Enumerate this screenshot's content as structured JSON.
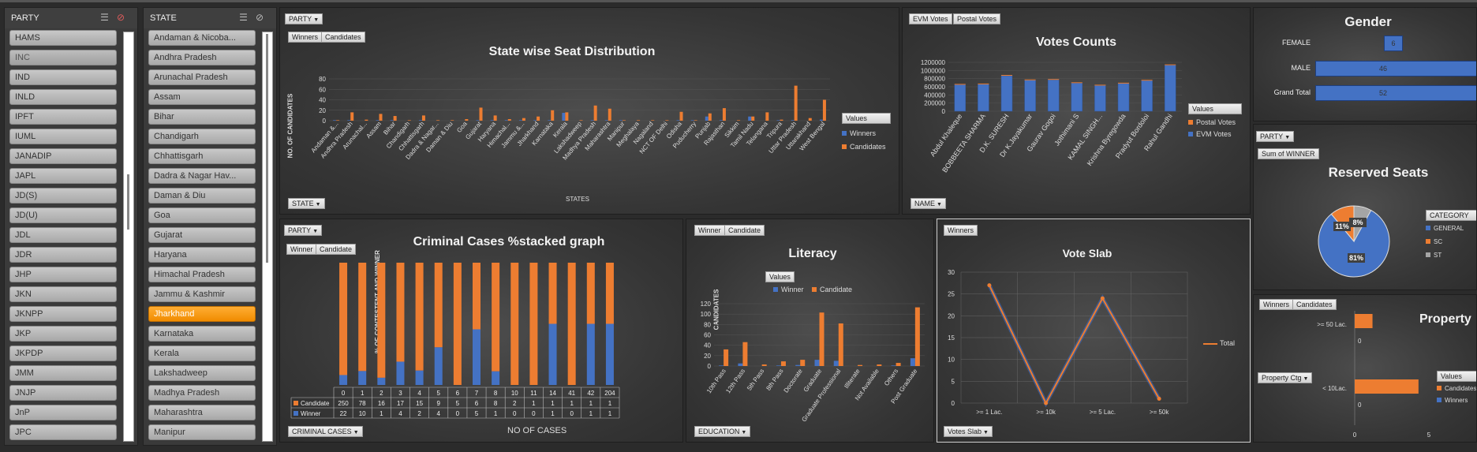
{
  "colors": {
    "orange": "#ed7d31",
    "blue": "#4472c4",
    "gray": "#a5a5a5",
    "selected": "#f59a1b"
  },
  "party_slicer": {
    "header": "PARTY",
    "items": [
      "HAMS",
      "INC",
      "IND",
      "INLD",
      "IPFT",
      "IUML",
      "JANADIP",
      "JAPL",
      "JD(S)",
      "JD(U)",
      "JDL",
      "JDR",
      "JHP",
      "JKN",
      "JKNPP",
      "JKP",
      "JKPDP",
      "JMM",
      "JNJP",
      "JnP",
      "JPC"
    ]
  },
  "state_slicer": {
    "header": "STATE",
    "items": [
      "Andaman & Nicoba...",
      "Andhra Pradesh",
      "Arunachal Pradesh",
      "Assam",
      "Bihar",
      "Chandigarh",
      "Chhattisgarh",
      "Dadra & Nagar Hav...",
      "Daman & Diu",
      "Goa",
      "Gujarat",
      "Haryana",
      "Himachal Pradesh",
      "Jammu & Kashmir",
      "Jharkhand",
      "Karnataka",
      "Kerala",
      "Lakshadweep",
      "Madhya Pradesh",
      "Maharashtra",
      "Manipur"
    ],
    "selected": "Jharkhand"
  },
  "seat_chart": {
    "field_party": "PARTY",
    "legend_buttons": [
      "Winners",
      "Candidates"
    ],
    "field_axis": "STATE",
    "legend_title": "Values"
  },
  "votes_chart": {
    "legend_buttons": [
      "EVM Votes",
      "Postal Votes"
    ],
    "field_axis": "NAME",
    "legend_title": "Values"
  },
  "gender_chart": {
    "title": "Gender",
    "rows": [
      {
        "label": "FEMALE",
        "value": "6"
      },
      {
        "label": "MALE",
        "value": "46"
      },
      {
        "label": "Grand Total",
        "value": "52"
      }
    ]
  },
  "reserved_chart": {
    "field_party": "PARTY",
    "sum_button": "Sum of WINNER",
    "title": "Reserved Seats",
    "legend_title": "CATEGORY"
  },
  "criminal_chart": {
    "field_party": "PARTY",
    "legend_buttons": [
      "Winner",
      "Candidate"
    ],
    "field_axis": "CRIMINAL CASES",
    "table_header": [
      "0",
      "1",
      "2",
      "3",
      "4",
      "5",
      "6",
      "7",
      "8",
      "10",
      "11",
      "14",
      "41",
      "42",
      "204"
    ],
    "row_candidate_label": "Candidate",
    "row_winner_label": "Winner",
    "candidate_values": [
      "250",
      "78",
      "16",
      "17",
      "15",
      "9",
      "5",
      "6",
      "8",
      "2",
      "1",
      "1",
      "1",
      "1",
      "1"
    ],
    "winner_values": [
      "22",
      "10",
      "1",
      "4",
      "2",
      "4",
      "0",
      "5",
      "1",
      "0",
      "0",
      "1",
      "0",
      "1",
      "1"
    ]
  },
  "literacy_chart": {
    "legend_buttons": [
      "Winner",
      "Candidate"
    ],
    "field_axis": "EDUCATION",
    "legend_title": "Values"
  },
  "vote_slab_chart": {
    "legend_button": "Winners",
    "field_axis": "Votes Slab",
    "series_name": "Total"
  },
  "property_chart": {
    "legend_buttons": [
      "Winners",
      "Candidates"
    ],
    "field_axis": "Property Ctg",
    "title": "Property",
    "legend_title": "Values"
  },
  "chart_data": [
    {
      "type": "bar",
      "title": "State wise Seat Distribution",
      "xlabel": "STATES",
      "ylabel": "NO. OF CANDIDATES",
      "ylim": [
        0,
        80
      ],
      "yticks": [
        0,
        20,
        40,
        60,
        80
      ],
      "categories": [
        "Andaman &...",
        "Andhra Pradesh",
        "Arunachal...",
        "Assam",
        "Bihar",
        "Chandigarh",
        "Chhattisgarh",
        "Dadra & Nagar...",
        "Daman & Diu",
        "Goa",
        "Gujarat",
        "Haryana",
        "Himachal...",
        "Jammu &...",
        "Jharkhand",
        "Karnataka",
        "Kerala",
        "Lakshadweep",
        "Madhya Pradesh",
        "Maharashtra",
        "Manipur",
        "Meghalaya",
        "Nagaland",
        "NCT OF Delhi",
        "Odisha",
        "Puducherry",
        "Punjab",
        "Rajasthan",
        "Sikkim",
        "Tamil Nadu",
        "Telangana",
        "Tripura",
        "Uttar Pradesh",
        "Uttarakhand",
        "West Bengal"
      ],
      "series": [
        {
          "name": "Winners",
          "values": [
            1,
            1,
            0,
            1,
            1,
            0,
            1,
            0,
            0,
            0,
            1,
            1,
            1,
            1,
            1,
            1,
            15,
            0,
            1,
            1,
            1,
            0,
            0,
            0,
            1,
            1,
            8,
            1,
            0,
            8,
            0,
            1,
            1,
            0,
            2
          ]
        },
        {
          "name": "Candidates",
          "values": [
            1,
            16,
            2,
            13,
            9,
            1,
            10,
            1,
            1,
            3,
            25,
            10,
            3,
            5,
            8,
            20,
            16,
            1,
            29,
            23,
            1,
            1,
            1,
            1,
            17,
            1,
            14,
            24,
            1,
            8,
            16,
            2,
            67,
            5,
            40
          ]
        }
      ],
      "legend_position": "right"
    },
    {
      "type": "bar",
      "title": "Votes Counts",
      "ylim": [
        0,
        1200000
      ],
      "yticks": [
        0,
        200000,
        400000,
        600000,
        800000,
        1000000,
        1200000
      ],
      "categories": [
        "Abdul Khaleque",
        "BOBBEETA SHARMA",
        "D.K. SURESH",
        "Dr K.Jayakumar",
        "Gaurav Gogoi",
        "Jothimani S",
        "KAMAL SINGH...",
        "Krishna Byregowda",
        "Pradyut Bordoloi",
        "Rahul Gandhi"
      ],
      "series": [
        {
          "name": "EVM Votes",
          "values": [
            650000,
            660000,
            870000,
            760000,
            770000,
            690000,
            630000,
            680000,
            750000,
            1130000
          ]
        },
        {
          "name": "Postal Votes",
          "values": [
            5000,
            6000,
            6000,
            7000,
            6000,
            5000,
            5000,
            5000,
            6000,
            9000
          ]
        }
      ],
      "legend_position": "right"
    },
    {
      "type": "bar",
      "title": "Gender",
      "categories": [
        "FEMALE",
        "MALE",
        "Grand Total"
      ],
      "values": [
        6,
        46,
        52
      ]
    },
    {
      "type": "pie",
      "title": "Reserved Seats",
      "categories": [
        "GENERAL",
        "SC",
        "ST"
      ],
      "values": [
        81,
        11,
        8
      ],
      "labels": [
        "81%",
        "11%",
        "8%"
      ],
      "legend_position": "right"
    },
    {
      "type": "bar",
      "title": "Criminal Cases %stacked graph",
      "xlabel": "NO OF CASES",
      "ylabel": "% OF CONTESTENT AND WINNER",
      "categories": [
        "0",
        "1",
        "2",
        "3",
        "4",
        "5",
        "6",
        "7",
        "8",
        "10",
        "11",
        "14",
        "41",
        "42",
        "204"
      ],
      "series": [
        {
          "name": "Candidate",
          "values": [
            250,
            78,
            16,
            17,
            15,
            9,
            5,
            6,
            8,
            2,
            1,
            1,
            1,
            1,
            1
          ]
        },
        {
          "name": "Winner",
          "values": [
            22,
            10,
            1,
            4,
            2,
            4,
            0,
            5,
            1,
            0,
            0,
            1,
            0,
            1,
            1
          ]
        }
      ],
      "stacked_percent": true
    },
    {
      "type": "bar",
      "title": "Literacy",
      "ylabel": "CANDIDATES",
      "ylim": [
        0,
        120
      ],
      "yticks": [
        0,
        20,
        40,
        60,
        80,
        100,
        120
      ],
      "categories": [
        "10th Pass",
        "12th Pass",
        "5th Pass",
        "8th Pass",
        "Doctorate",
        "Graduate",
        "Graduate Professional",
        "Illiterate",
        "Not Available",
        "Others",
        "Post Graduate"
      ],
      "series": [
        {
          "name": "Winner",
          "values": [
            1,
            5,
            0,
            1,
            2,
            12,
            10,
            0,
            0,
            1,
            15
          ]
        },
        {
          "name": "Candidate",
          "values": [
            32,
            46,
            3,
            9,
            12,
            103,
            82,
            2,
            3,
            6,
            113
          ]
        }
      ],
      "legend_position": "top"
    },
    {
      "type": "line",
      "title": "Vote Slab",
      "ylim": [
        0,
        30
      ],
      "yticks": [
        0,
        5,
        10,
        15,
        20,
        25,
        30
      ],
      "categories": [
        ">= 1 Lac.",
        ">= 10k",
        ">= 5 Lac.",
        ">= 50k"
      ],
      "series": [
        {
          "name": "Total",
          "values": [
            27,
            0,
            24,
            1
          ]
        }
      ],
      "legend_position": "right"
    },
    {
      "type": "bar",
      "title": "Property",
      "categories": [
        ">= 50 Lac.",
        "< 10Lac."
      ],
      "xticks": [
        0,
        5
      ],
      "series": [
        {
          "name": "Candidates",
          "values": [
            1.2,
            4.3
          ]
        },
        {
          "name": "Winners",
          "values": [
            0,
            0
          ]
        }
      ],
      "data_labels": [
        "0",
        "0"
      ]
    }
  ]
}
